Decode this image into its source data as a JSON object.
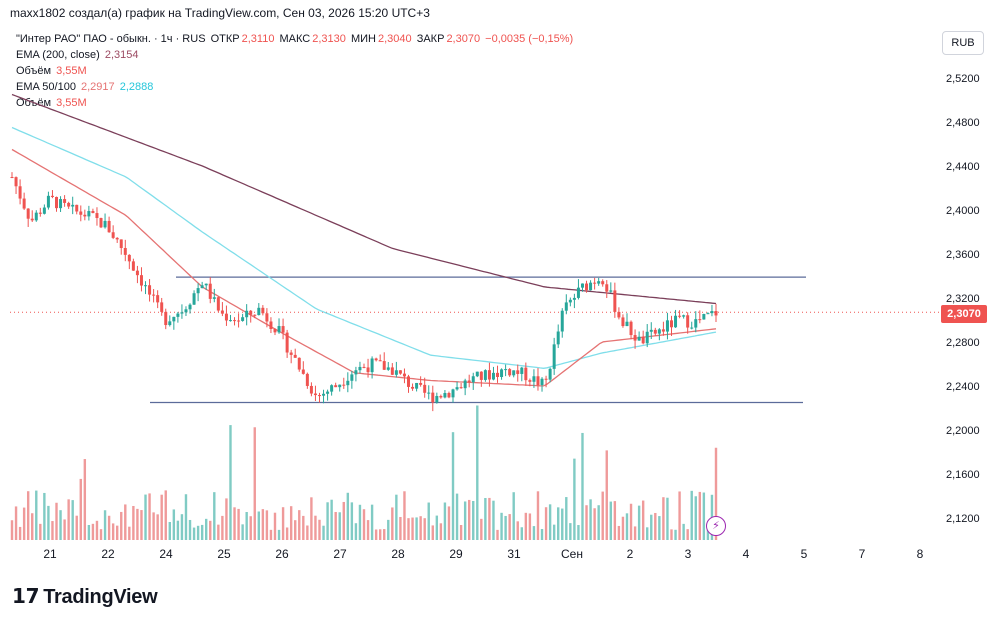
{
  "caption": "maxx1802 создал(а) график на TradingView.com, Сен 03, 2026 15:20 UTC+3",
  "legend": {
    "symbol": "\"Интер РАО\" ПАО - обыкн. · 1ч · RUS",
    "open_label": "ОТКР",
    "open": "2,3110",
    "high_label": "МАКС",
    "high": "2,3130",
    "low_label": "МИН",
    "low": "2,3040",
    "close_label": "ЗАКР",
    "close": "2,3070",
    "change": "−0,0035 (−0,15%)",
    "ema200_label": "EMA (200, close)",
    "ema200_value": "2,3154",
    "volume_label": "Объём",
    "volume_value": "3,55M",
    "ema50_100_label": "EMA 50/100",
    "ema50_value": "2,2917",
    "ema100_value": "2,2888",
    "volume2_label": "Объём",
    "volume2_value": "3,55M"
  },
  "currency": "RUB",
  "last_price_tag": "2,3070",
  "brand": "TradingView",
  "colors": {
    "up": "#26a69a",
    "down": "#ef5350",
    "ema200": "#7b3f5a",
    "ema50": "#e57373",
    "ema100": "#80deea",
    "level_lines": "#5b6b9a",
    "lightning": "#9c27b0"
  },
  "chart_data": {
    "type": "candlestick",
    "y_axis_ticks": [
      "2,5200",
      "2,4800",
      "2,4400",
      "2,4000",
      "2,3600",
      "2,3200",
      "2,2800",
      "2,2400",
      "2,2000",
      "2,1600",
      "2,1200"
    ],
    "ylim": [
      2.1,
      2.54
    ],
    "x_axis_ticks": [
      "21",
      "22",
      "24",
      "25",
      "26",
      "27",
      "28",
      "29",
      "31",
      "Сен",
      "2",
      "3",
      "4",
      "5",
      "7",
      "8"
    ],
    "horizontal_levels": [
      2.339,
      2.225
    ],
    "last_price": 2.307,
    "ema200_end": 2.3154,
    "ema50_end": 2.2917,
    "ema100_end": 2.2888,
    "price_path": [
      [
        0,
        2.43
      ],
      [
        1,
        2.39
      ],
      [
        2,
        2.41
      ],
      [
        3,
        2.4
      ],
      [
        4,
        2.395
      ],
      [
        5,
        2.385
      ],
      [
        6,
        2.36
      ],
      [
        7,
        2.33
      ],
      [
        8,
        2.3
      ],
      [
        9,
        2.31
      ],
      [
        10,
        2.335
      ],
      [
        11,
        2.305
      ],
      [
        12,
        2.3
      ],
      [
        13,
        2.31
      ],
      [
        14,
        2.29
      ],
      [
        15,
        2.26
      ],
      [
        16,
        2.23
      ],
      [
        17,
        2.24
      ],
      [
        18,
        2.255
      ],
      [
        19,
        2.26
      ],
      [
        20,
        2.255
      ],
      [
        21,
        2.24
      ],
      [
        22,
        2.23
      ],
      [
        23,
        2.235
      ],
      [
        24,
        2.245
      ],
      [
        25,
        2.25
      ],
      [
        26,
        2.255
      ],
      [
        27,
        2.25
      ],
      [
        28,
        2.24
      ],
      [
        29,
        2.31
      ],
      [
        30,
        2.33
      ],
      [
        31,
        2.34
      ],
      [
        32,
        2.3
      ],
      [
        33,
        2.28
      ],
      [
        34,
        2.29
      ],
      [
        35,
        2.3
      ],
      [
        36,
        2.298
      ],
      [
        37,
        2.307
      ]
    ],
    "ema200": [
      [
        0,
        2.505
      ],
      [
        10,
        2.44
      ],
      [
        20,
        2.365
      ],
      [
        28,
        2.33
      ],
      [
        37,
        2.315
      ]
    ],
    "ema50": [
      [
        0,
        2.455
      ],
      [
        6,
        2.395
      ],
      [
        10,
        2.33
      ],
      [
        14,
        2.29
      ],
      [
        18,
        2.252
      ],
      [
        22,
        2.245
      ],
      [
        28,
        2.24
      ],
      [
        31,
        2.28
      ],
      [
        37,
        2.292
      ]
    ],
    "ema100": [
      [
        0,
        2.475
      ],
      [
        6,
        2.43
      ],
      [
        10,
        2.38
      ],
      [
        16,
        2.31
      ],
      [
        22,
        2.268
      ],
      [
        28,
        2.256
      ],
      [
        31,
        2.27
      ],
      [
        37,
        2.289
      ]
    ]
  }
}
